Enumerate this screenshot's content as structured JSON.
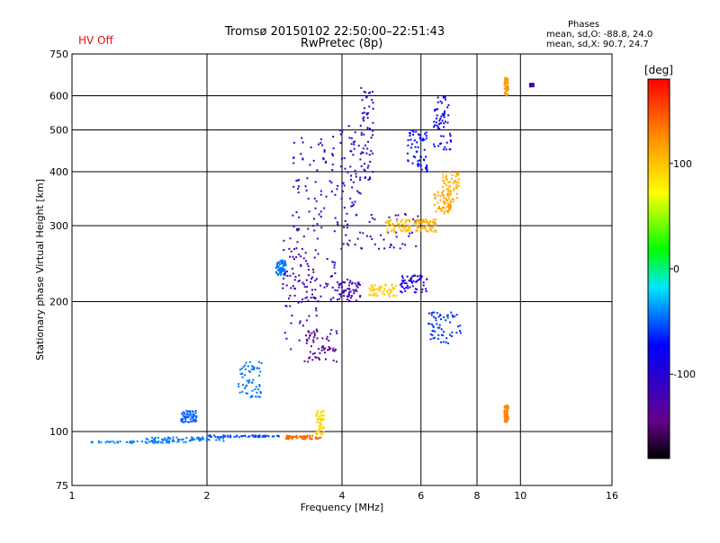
{
  "header": {
    "hv_status": "HV Off",
    "title": "Tromsø 20150102 22:50:00–22:51:43",
    "subtitle": "RwPretec (8p)",
    "phases_title": "Phases",
    "phases_o": "mean, sd,O: -88.8, 24.0",
    "phases_x": "mean, sd,X:  90.7, 24.7"
  },
  "chart_data": {
    "type": "scatter",
    "title": "Tromsø 20150102 22:50:00–22:51:43",
    "subtitle": "RwPretec (8p)",
    "xlabel": "Frequency [MHz]",
    "ylabel": "Stationary phase Virtual Height [km]",
    "xscale": "log",
    "yscale": "log",
    "xlim": [
      1,
      16
    ],
    "ylim": [
      75,
      750
    ],
    "xticks": [
      1,
      2,
      4,
      6,
      8,
      10,
      16
    ],
    "xtick_labels": [
      "1",
      "2",
      "4",
      "6",
      "8",
      "10",
      "16"
    ],
    "yticks": [
      75,
      100,
      200,
      300,
      400,
      500,
      600,
      750
    ],
    "ytick_labels": [
      "75",
      "100",
      "200",
      "300",
      "400",
      "500",
      "600",
      "750"
    ],
    "grid": true,
    "colorbar": {
      "label": "[deg]",
      "ticks": [
        100,
        0,
        -100
      ],
      "tick_labels": [
        "100",
        "0",
        "-100"
      ],
      "range": [
        -180,
        180
      ]
    },
    "series": [
      {
        "segments": [
          {
            "x": [
              1.1,
              1.8
            ],
            "y": [
              94,
              95
            ],
            "phase": -40
          },
          {
            "x": [
              1.45,
              2.2
            ],
            "y": [
              95,
              97
            ],
            "phase": -45
          },
          {
            "x": [
              2.0,
              2.9
            ],
            "y": [
              97,
              98
            ],
            "phase": -55
          },
          {
            "x": [
              1.75,
              1.9
            ],
            "y": [
              105,
              112
            ],
            "phase": -50
          },
          {
            "x": [
              2.35,
              2.65
            ],
            "y": [
              120,
              145
            ],
            "phase": -45
          },
          {
            "x": [
              2.85,
              3.0
            ],
            "y": [
              230,
              250
            ],
            "phase": -45
          },
          {
            "x": [
              3.0,
              3.6
            ],
            "y": [
              96,
              98
            ],
            "phase": 140
          },
          {
            "x": [
              3.5,
              3.65
            ],
            "y": [
              98,
              112
            ],
            "phase": 90
          },
          {
            "x": [
              2.95,
              3.55
            ],
            "y": [
              155,
              290
            ],
            "phase": -120
          },
          {
            "x": [
              3.0,
              3.9
            ],
            "y": [
              200,
              260
            ],
            "phase": -115
          },
          {
            "x": [
              3.1,
              3.7
            ],
            "y": [
              290,
              480
            ],
            "phase": -105
          },
          {
            "x": [
              3.75,
              4.4
            ],
            "y": [
              330,
              520
            ],
            "phase": -100
          },
          {
            "x": [
              3.3,
              3.9
            ],
            "y": [
              145,
              175
            ],
            "phase": -135
          },
          {
            "x": [
              3.8,
              6.0
            ],
            "y": [
              265,
              320
            ],
            "phase": -115
          },
          {
            "x": [
              4.4,
              4.7
            ],
            "y": [
              380,
              630
            ],
            "phase": -105
          },
          {
            "x": [
              3.9,
              4.4
            ],
            "y": [
              200,
              225
            ],
            "phase": -115
          },
          {
            "x": [
              4.6,
              5.3
            ],
            "y": [
              205,
              220
            ],
            "phase": 95
          },
          {
            "x": [
              5.4,
              6.2
            ],
            "y": [
              210,
              230
            ],
            "phase": -90
          },
          {
            "x": [
              5.0,
              5.7
            ],
            "y": [
              290,
              310
            ],
            "phase": 100
          },
          {
            "x": [
              5.8,
              6.5
            ],
            "y": [
              290,
              310
            ],
            "phase": 110
          },
          {
            "x": [
              6.4,
              7.0
            ],
            "y": [
              320,
              360
            ],
            "phase": 115
          },
          {
            "x": [
              6.7,
              7.3
            ],
            "y": [
              340,
              400
            ],
            "phase": 110
          },
          {
            "x": [
              5.6,
              6.2
            ],
            "y": [
              400,
              500
            ],
            "phase": -70
          },
          {
            "x": [
              6.4,
              7.0
            ],
            "y": [
              450,
              600
            ],
            "phase": -80
          },
          {
            "x": [
              9.2,
              9.4
            ],
            "y": [
              600,
              660
            ],
            "phase": 120
          },
          {
            "x": [
              10.5,
              10.7
            ],
            "y": [
              630,
              640
            ],
            "phase": -120
          },
          {
            "x": [
              6.2,
              7.4
            ],
            "y": [
              160,
              190
            ],
            "phase": -60
          },
          {
            "x": [
              9.2,
              9.4
            ],
            "y": [
              105,
              115
            ],
            "phase": 130
          }
        ]
      }
    ]
  },
  "colors": {
    "hv_status": "#e01010",
    "gridline": "#000000"
  }
}
